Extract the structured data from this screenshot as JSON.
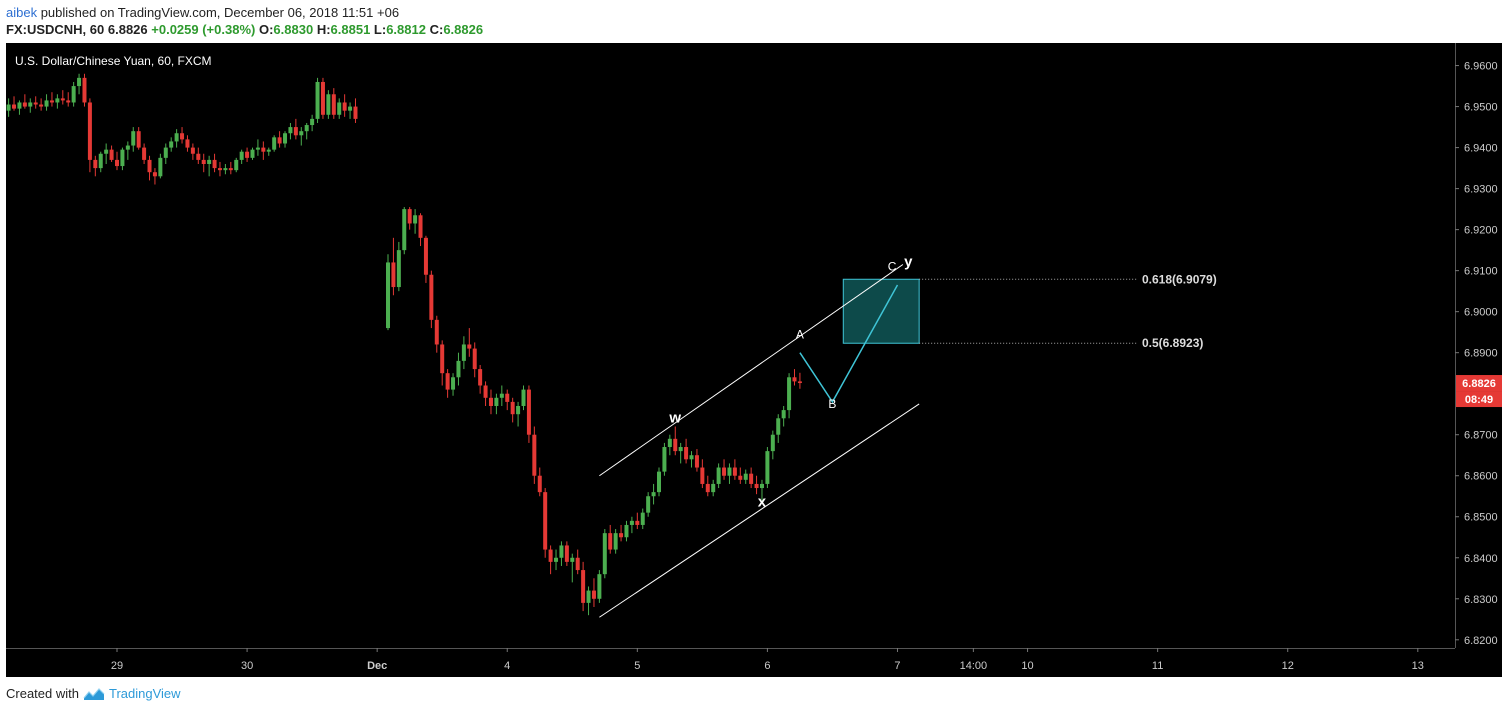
{
  "header": {
    "author": "aibek",
    "published_text": "published on TradingView.com, December 06, 2018 11:51 +06",
    "symbol_line": "FX:USDCNH, 60",
    "last": "6.8826",
    "change": "+0.0259 (+0.38%)",
    "o_label": "O:",
    "o_value": "6.8830",
    "h_label": "H:",
    "h_value": "6.8851",
    "l_label": "L:",
    "l_value": "6.8812",
    "c_label": "C:",
    "c_value": "6.8826"
  },
  "footer": {
    "created_with": "Created with",
    "brand": "TradingView"
  },
  "colors": {
    "background": "#000000",
    "up": "#4caf50",
    "down": "#e53935",
    "price_tag": "#e53935",
    "target_box": "#0d4a4a",
    "target_border": "#3fc4d6",
    "projection": "#3fc4d6",
    "channel": "#ffffff"
  },
  "chart_data": {
    "type": "candlestick",
    "title": "U.S. Dollar/Chinese Yuan, 60, FXCM",
    "ylim": [
      6.818,
      6.9655
    ],
    "y_ticks": [
      "6.9600",
      "6.9500",
      "6.9400",
      "6.9300",
      "6.9200",
      "6.9100",
      "6.9000",
      "6.8900",
      "6.8700",
      "6.8600",
      "6.8500",
      "6.8400",
      "6.8300",
      "6.8200"
    ],
    "x_ticks": [
      {
        "label": "29",
        "t": 0
      },
      {
        "label": "30",
        "t": 24
      },
      {
        "label": "Dec",
        "t": 48
      },
      {
        "label": "4",
        "t": 72
      },
      {
        "label": "5",
        "t": 96
      },
      {
        "label": "6",
        "t": 120
      },
      {
        "label": "7",
        "t": 144
      },
      {
        "label": "14:00",
        "t": 158
      },
      {
        "label": "10",
        "t": 168
      },
      {
        "label": "11",
        "t": 192
      },
      {
        "label": "12",
        "t": 216
      },
      {
        "label": "13",
        "t": 240
      }
    ],
    "current_price": "6.8826",
    "countdown": "08:49",
    "candles": [
      {
        "t": -20,
        "o": 6.949,
        "h": 6.952,
        "l": 6.9475,
        "c": 6.9505
      },
      {
        "t": -19,
        "o": 6.9505,
        "h": 6.9525,
        "l": 6.949,
        "c": 6.9495
      },
      {
        "t": -18,
        "o": 6.9495,
        "h": 6.9515,
        "l": 6.948,
        "c": 6.951
      },
      {
        "t": -17,
        "o": 6.951,
        "h": 6.953,
        "l": 6.9495,
        "c": 6.95
      },
      {
        "t": -16,
        "o": 6.95,
        "h": 6.952,
        "l": 6.9485,
        "c": 6.951
      },
      {
        "t": -15,
        "o": 6.951,
        "h": 6.9525,
        "l": 6.9495,
        "c": 6.9505
      },
      {
        "t": -14,
        "o": 6.9505,
        "h": 6.952,
        "l": 6.949,
        "c": 6.95
      },
      {
        "t": -13,
        "o": 6.95,
        "h": 6.953,
        "l": 6.949,
        "c": 6.9515
      },
      {
        "t": -12,
        "o": 6.9515,
        "h": 6.9535,
        "l": 6.95,
        "c": 6.951
      },
      {
        "t": -11,
        "o": 6.951,
        "h": 6.953,
        "l": 6.9495,
        "c": 6.952
      },
      {
        "t": -10,
        "o": 6.952,
        "h": 6.954,
        "l": 6.9505,
        "c": 6.9515
      },
      {
        "t": -9,
        "o": 6.9515,
        "h": 6.9535,
        "l": 6.95,
        "c": 6.951
      },
      {
        "t": -8,
        "o": 6.951,
        "h": 6.956,
        "l": 6.95,
        "c": 6.955
      },
      {
        "t": -7,
        "o": 6.955,
        "h": 6.958,
        "l": 6.953,
        "c": 6.957
      },
      {
        "t": -6,
        "o": 6.957,
        "h": 6.958,
        "l": 6.95,
        "c": 6.951
      },
      {
        "t": -5,
        "o": 6.951,
        "h": 6.952,
        "l": 6.934,
        "c": 6.937
      },
      {
        "t": -4,
        "o": 6.937,
        "h": 6.938,
        "l": 6.933,
        "c": 6.935
      },
      {
        "t": -3,
        "o": 6.935,
        "h": 6.939,
        "l": 6.934,
        "c": 6.9385
      },
      {
        "t": -2,
        "o": 6.9385,
        "h": 6.941,
        "l": 6.936,
        "c": 6.9395
      },
      {
        "t": -1,
        "o": 6.9395,
        "h": 6.9405,
        "l": 6.9365,
        "c": 6.937
      },
      {
        "t": 0,
        "o": 6.937,
        "h": 6.939,
        "l": 6.9345,
        "c": 6.9355
      },
      {
        "t": 1,
        "o": 6.9355,
        "h": 6.94,
        "l": 6.9345,
        "c": 6.9395
      },
      {
        "t": 2,
        "o": 6.9395,
        "h": 6.9415,
        "l": 6.937,
        "c": 6.9405
      },
      {
        "t": 3,
        "o": 6.9405,
        "h": 6.945,
        "l": 6.939,
        "c": 6.944
      },
      {
        "t": 4,
        "o": 6.944,
        "h": 6.945,
        "l": 6.9395,
        "c": 6.94
      },
      {
        "t": 5,
        "o": 6.94,
        "h": 6.941,
        "l": 6.936,
        "c": 6.937
      },
      {
        "t": 6,
        "o": 6.937,
        "h": 6.938,
        "l": 6.932,
        "c": 6.934
      },
      {
        "t": 7,
        "o": 6.934,
        "h": 6.935,
        "l": 6.931,
        "c": 6.933
      },
      {
        "t": 8,
        "o": 6.933,
        "h": 6.9385,
        "l": 6.9325,
        "c": 6.9375
      },
      {
        "t": 9,
        "o": 6.9375,
        "h": 6.941,
        "l": 6.936,
        "c": 6.94
      },
      {
        "t": 10,
        "o": 6.94,
        "h": 6.9425,
        "l": 6.939,
        "c": 6.9415
      },
      {
        "t": 11,
        "o": 6.9415,
        "h": 6.9445,
        "l": 6.94,
        "c": 6.9435
      },
      {
        "t": 12,
        "o": 6.9435,
        "h": 6.945,
        "l": 6.941,
        "c": 6.942
      },
      {
        "t": 13,
        "o": 6.942,
        "h": 6.943,
        "l": 6.939,
        "c": 6.94
      },
      {
        "t": 14,
        "o": 6.94,
        "h": 6.941,
        "l": 6.937,
        "c": 6.9385
      },
      {
        "t": 15,
        "o": 6.9385,
        "h": 6.94,
        "l": 6.936,
        "c": 6.937
      },
      {
        "t": 16,
        "o": 6.937,
        "h": 6.9385,
        "l": 6.934,
        "c": 6.936
      },
      {
        "t": 17,
        "o": 6.936,
        "h": 6.938,
        "l": 6.933,
        "c": 6.937
      },
      {
        "t": 18,
        "o": 6.937,
        "h": 6.9385,
        "l": 6.934,
        "c": 6.935
      },
      {
        "t": 19,
        "o": 6.935,
        "h": 6.9365,
        "l": 6.933,
        "c": 6.9345
      },
      {
        "t": 20,
        "o": 6.9345,
        "h": 6.936,
        "l": 6.9335,
        "c": 6.935
      },
      {
        "t": 21,
        "o": 6.935,
        "h": 6.9365,
        "l": 6.9335,
        "c": 6.9345
      },
      {
        "t": 22,
        "o": 6.9345,
        "h": 6.9375,
        "l": 6.934,
        "c": 6.937
      },
      {
        "t": 23,
        "o": 6.937,
        "h": 6.9395,
        "l": 6.936,
        "c": 6.939
      },
      {
        "t": 24,
        "o": 6.939,
        "h": 6.94,
        "l": 6.9365,
        "c": 6.9375
      },
      {
        "t": 25,
        "o": 6.9375,
        "h": 6.94,
        "l": 6.937,
        "c": 6.9395
      },
      {
        "t": 26,
        "o": 6.9395,
        "h": 6.942,
        "l": 6.938,
        "c": 6.94
      },
      {
        "t": 27,
        "o": 6.94,
        "h": 6.9415,
        "l": 6.937,
        "c": 6.939
      },
      {
        "t": 28,
        "o": 6.939,
        "h": 6.94,
        "l": 6.938,
        "c": 6.9395
      },
      {
        "t": 29,
        "o": 6.9395,
        "h": 6.943,
        "l": 6.939,
        "c": 6.9425
      },
      {
        "t": 30,
        "o": 6.9425,
        "h": 6.944,
        "l": 6.94,
        "c": 6.941
      },
      {
        "t": 31,
        "o": 6.941,
        "h": 6.944,
        "l": 6.94,
        "c": 6.9435
      },
      {
        "t": 32,
        "o": 6.9435,
        "h": 6.946,
        "l": 6.942,
        "c": 6.945
      },
      {
        "t": 33,
        "o": 6.945,
        "h": 6.947,
        "l": 6.942,
        "c": 6.943
      },
      {
        "t": 34,
        "o": 6.943,
        "h": 6.945,
        "l": 6.9405,
        "c": 6.944
      },
      {
        "t": 35,
        "o": 6.944,
        "h": 6.946,
        "l": 6.942,
        "c": 6.9455
      },
      {
        "t": 36,
        "o": 6.9455,
        "h": 6.948,
        "l": 6.944,
        "c": 6.947
      },
      {
        "t": 37,
        "o": 6.947,
        "h": 6.957,
        "l": 6.946,
        "c": 6.956
      },
      {
        "t": 38,
        "o": 6.956,
        "h": 6.957,
        "l": 6.947,
        "c": 6.948
      },
      {
        "t": 39,
        "o": 6.948,
        "h": 6.954,
        "l": 6.947,
        "c": 6.953
      },
      {
        "t": 40,
        "o": 6.953,
        "h": 6.9545,
        "l": 6.947,
        "c": 6.948
      },
      {
        "t": 41,
        "o": 6.948,
        "h": 6.952,
        "l": 6.947,
        "c": 6.951
      },
      {
        "t": 42,
        "o": 6.951,
        "h": 6.953,
        "l": 6.9475,
        "c": 6.949
      },
      {
        "t": 43,
        "o": 6.949,
        "h": 6.951,
        "l": 6.947,
        "c": 6.95
      },
      {
        "t": 44,
        "o": 6.95,
        "h": 6.952,
        "l": 6.946,
        "c": 6.947
      },
      {
        "t": 50,
        "o": 6.896,
        "h": 6.914,
        "l": 6.8955,
        "c": 6.912
      },
      {
        "t": 51,
        "o": 6.912,
        "h": 6.918,
        "l": 6.904,
        "c": 6.906
      },
      {
        "t": 52,
        "o": 6.906,
        "h": 6.917,
        "l": 6.905,
        "c": 6.915
      },
      {
        "t": 53,
        "o": 6.915,
        "h": 6.9255,
        "l": 6.914,
        "c": 6.925
      },
      {
        "t": 54,
        "o": 6.925,
        "h": 6.9255,
        "l": 6.92,
        "c": 6.9215
      },
      {
        "t": 55,
        "o": 6.9215,
        "h": 6.925,
        "l": 6.919,
        "c": 6.9235
      },
      {
        "t": 56,
        "o": 6.9235,
        "h": 6.924,
        "l": 6.916,
        "c": 6.918
      },
      {
        "t": 57,
        "o": 6.918,
        "h": 6.9185,
        "l": 6.907,
        "c": 6.909
      },
      {
        "t": 58,
        "o": 6.909,
        "h": 6.91,
        "l": 6.896,
        "c": 6.898
      },
      {
        "t": 59,
        "o": 6.898,
        "h": 6.899,
        "l": 6.89,
        "c": 6.892
      },
      {
        "t": 60,
        "o": 6.892,
        "h": 6.893,
        "l": 6.882,
        "c": 6.885
      },
      {
        "t": 61,
        "o": 6.885,
        "h": 6.886,
        "l": 6.879,
        "c": 6.881
      },
      {
        "t": 62,
        "o": 6.881,
        "h": 6.885,
        "l": 6.8795,
        "c": 6.884
      },
      {
        "t": 63,
        "o": 6.884,
        "h": 6.89,
        "l": 6.882,
        "c": 6.888
      },
      {
        "t": 64,
        "o": 6.888,
        "h": 6.894,
        "l": 6.886,
        "c": 6.892
      },
      {
        "t": 65,
        "o": 6.892,
        "h": 6.896,
        "l": 6.889,
        "c": 6.891
      },
      {
        "t": 66,
        "o": 6.891,
        "h": 6.8925,
        "l": 6.884,
        "c": 6.886
      },
      {
        "t": 67,
        "o": 6.886,
        "h": 6.887,
        "l": 6.88,
        "c": 6.882
      },
      {
        "t": 68,
        "o": 6.882,
        "h": 6.883,
        "l": 6.877,
        "c": 6.879
      },
      {
        "t": 69,
        "o": 6.879,
        "h": 6.881,
        "l": 6.875,
        "c": 6.877
      },
      {
        "t": 70,
        "o": 6.877,
        "h": 6.88,
        "l": 6.875,
        "c": 6.879
      },
      {
        "t": 71,
        "o": 6.879,
        "h": 6.882,
        "l": 6.877,
        "c": 6.88
      },
      {
        "t": 72,
        "o": 6.88,
        "h": 6.881,
        "l": 6.876,
        "c": 6.878
      },
      {
        "t": 73,
        "o": 6.878,
        "h": 6.879,
        "l": 6.873,
        "c": 6.875
      },
      {
        "t": 74,
        "o": 6.875,
        "h": 6.878,
        "l": 6.872,
        "c": 6.877
      },
      {
        "t": 75,
        "o": 6.877,
        "h": 6.882,
        "l": 6.876,
        "c": 6.881
      },
      {
        "t": 76,
        "o": 6.881,
        "h": 6.882,
        "l": 6.868,
        "c": 6.87
      },
      {
        "t": 77,
        "o": 6.87,
        "h": 6.872,
        "l": 6.858,
        "c": 6.86
      },
      {
        "t": 78,
        "o": 6.86,
        "h": 6.862,
        "l": 6.855,
        "c": 6.856
      },
      {
        "t": 79,
        "o": 6.856,
        "h": 6.857,
        "l": 6.84,
        "c": 6.842
      },
      {
        "t": 80,
        "o": 6.842,
        "h": 6.843,
        "l": 6.836,
        "c": 6.839
      },
      {
        "t": 81,
        "o": 6.839,
        "h": 6.842,
        "l": 6.837,
        "c": 6.84
      },
      {
        "t": 82,
        "o": 6.84,
        "h": 6.844,
        "l": 6.838,
        "c": 6.843
      },
      {
        "t": 83,
        "o": 6.843,
        "h": 6.844,
        "l": 6.838,
        "c": 6.839
      },
      {
        "t": 84,
        "o": 6.839,
        "h": 6.841,
        "l": 6.834,
        "c": 6.84
      },
      {
        "t": 85,
        "o": 6.84,
        "h": 6.842,
        "l": 6.836,
        "c": 6.837
      },
      {
        "t": 86,
        "o": 6.837,
        "h": 6.839,
        "l": 6.827,
        "c": 6.829
      },
      {
        "t": 87,
        "o": 6.829,
        "h": 6.833,
        "l": 6.826,
        "c": 6.832
      },
      {
        "t": 88,
        "o": 6.832,
        "h": 6.835,
        "l": 6.828,
        "c": 6.83
      },
      {
        "t": 89,
        "o": 6.83,
        "h": 6.837,
        "l": 6.829,
        "c": 6.836
      },
      {
        "t": 90,
        "o": 6.836,
        "h": 6.847,
        "l": 6.835,
        "c": 6.846
      },
      {
        "t": 91,
        "o": 6.846,
        "h": 6.848,
        "l": 6.841,
        "c": 6.842
      },
      {
        "t": 92,
        "o": 6.842,
        "h": 6.847,
        "l": 6.841,
        "c": 6.846
      },
      {
        "t": 93,
        "o": 6.846,
        "h": 6.848,
        "l": 6.844,
        "c": 6.845
      },
      {
        "t": 94,
        "o": 6.845,
        "h": 6.849,
        "l": 6.844,
        "c": 6.848
      },
      {
        "t": 95,
        "o": 6.848,
        "h": 6.85,
        "l": 6.846,
        "c": 6.849
      },
      {
        "t": 96,
        "o": 6.849,
        "h": 6.851,
        "l": 6.847,
        "c": 6.848
      },
      {
        "t": 97,
        "o": 6.848,
        "h": 6.852,
        "l": 6.847,
        "c": 6.851
      },
      {
        "t": 98,
        "o": 6.851,
        "h": 6.856,
        "l": 6.85,
        "c": 6.855
      },
      {
        "t": 99,
        "o": 6.855,
        "h": 6.858,
        "l": 6.853,
        "c": 6.856
      },
      {
        "t": 100,
        "o": 6.856,
        "h": 6.862,
        "l": 6.855,
        "c": 6.861
      },
      {
        "t": 101,
        "o": 6.861,
        "h": 6.868,
        "l": 6.86,
        "c": 6.867
      },
      {
        "t": 102,
        "o": 6.867,
        "h": 6.87,
        "l": 6.865,
        "c": 6.869
      },
      {
        "t": 103,
        "o": 6.869,
        "h": 6.872,
        "l": 6.865,
        "c": 6.866
      },
      {
        "t": 104,
        "o": 6.866,
        "h": 6.868,
        "l": 6.863,
        "c": 6.867
      },
      {
        "t": 105,
        "o": 6.867,
        "h": 6.869,
        "l": 6.863,
        "c": 6.864
      },
      {
        "t": 106,
        "o": 6.864,
        "h": 6.866,
        "l": 6.862,
        "c": 6.865
      },
      {
        "t": 107,
        "o": 6.865,
        "h": 6.8665,
        "l": 6.861,
        "c": 6.862
      },
      {
        "t": 108,
        "o": 6.862,
        "h": 6.864,
        "l": 6.857,
        "c": 6.858
      },
      {
        "t": 109,
        "o": 6.858,
        "h": 6.86,
        "l": 6.855,
        "c": 6.856
      },
      {
        "t": 110,
        "o": 6.856,
        "h": 6.859,
        "l": 6.855,
        "c": 6.858
      },
      {
        "t": 111,
        "o": 6.858,
        "h": 6.863,
        "l": 6.857,
        "c": 6.862
      },
      {
        "t": 112,
        "o": 6.862,
        "h": 6.864,
        "l": 6.859,
        "c": 6.86
      },
      {
        "t": 113,
        "o": 6.86,
        "h": 6.863,
        "l": 6.858,
        "c": 6.862
      },
      {
        "t": 114,
        "o": 6.862,
        "h": 6.864,
        "l": 6.859,
        "c": 6.86
      },
      {
        "t": 115,
        "o": 6.86,
        "h": 6.862,
        "l": 6.858,
        "c": 6.859
      },
      {
        "t": 116,
        "o": 6.859,
        "h": 6.8615,
        "l": 6.858,
        "c": 6.8605
      },
      {
        "t": 117,
        "o": 6.8605,
        "h": 6.862,
        "l": 6.857,
        "c": 6.858
      },
      {
        "t": 118,
        "o": 6.858,
        "h": 6.86,
        "l": 6.8555,
        "c": 6.857
      },
      {
        "t": 119,
        "o": 6.857,
        "h": 6.859,
        "l": 6.854,
        "c": 6.858
      },
      {
        "t": 120,
        "o": 6.858,
        "h": 6.867,
        "l": 6.857,
        "c": 6.866
      },
      {
        "t": 121,
        "o": 6.866,
        "h": 6.871,
        "l": 6.864,
        "c": 6.87
      },
      {
        "t": 122,
        "o": 6.87,
        "h": 6.875,
        "l": 6.868,
        "c": 6.874
      },
      {
        "t": 123,
        "o": 6.874,
        "h": 6.877,
        "l": 6.872,
        "c": 6.876
      },
      {
        "t": 124,
        "o": 6.876,
        "h": 6.885,
        "l": 6.874,
        "c": 6.884
      },
      {
        "t": 125,
        "o": 6.884,
        "h": 6.886,
        "l": 6.882,
        "c": 6.883
      },
      {
        "t": 126,
        "o": 6.883,
        "h": 6.8851,
        "l": 6.8812,
        "c": 6.8826
      }
    ],
    "annotations": {
      "channel_upper": [
        {
          "t": 89,
          "y": 6.86
        },
        {
          "t": 145,
          "y": 6.9115
        }
      ],
      "channel_lower": [
        {
          "t": 89,
          "y": 6.8255
        },
        {
          "t": 148,
          "y": 6.8775
        }
      ],
      "target_zone": {
        "t0": 134,
        "t1": 148,
        "y_low": 6.8923,
        "y_high": 6.9079
      },
      "fib_levels": [
        {
          "label": "0.618(6.9079)",
          "y": 6.9079
        },
        {
          "label": "0.5(6.8923)",
          "y": 6.8923
        }
      ],
      "projection": [
        {
          "t": 126,
          "y": 6.89
        },
        {
          "t": 132,
          "y": 6.878
        },
        {
          "t": 144,
          "y": 6.9065
        }
      ],
      "labels": [
        {
          "text": "w",
          "t": 103,
          "y": 6.873,
          "style": "bold"
        },
        {
          "text": "x",
          "t": 119,
          "y": 6.8525,
          "style": "bold"
        },
        {
          "text": "A",
          "t": 126,
          "y": 6.8935,
          "style": "normal"
        },
        {
          "text": "B",
          "t": 132,
          "y": 6.8765,
          "style": "normal"
        },
        {
          "text": "C",
          "t": 143,
          "y": 6.91,
          "style": "normal"
        },
        {
          "text": "y",
          "t": 146,
          "y": 6.911,
          "style": "bold"
        }
      ]
    }
  }
}
